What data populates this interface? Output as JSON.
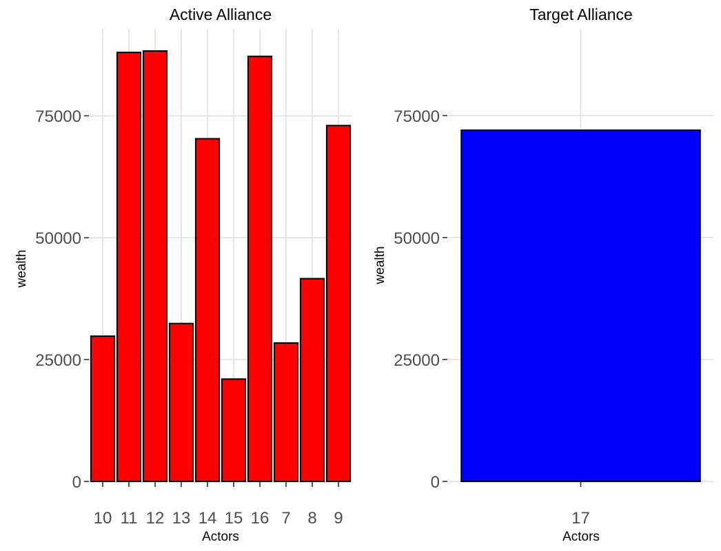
{
  "chart_data": [
    {
      "type": "bar",
      "title": "Active Alliance",
      "xlabel": "Actors",
      "ylabel": "wealth",
      "categories": [
        "10",
        "11",
        "12",
        "13",
        "14",
        "15",
        "16",
        "7",
        "8",
        "9"
      ],
      "values": [
        29800,
        88000,
        88300,
        32400,
        70300,
        21000,
        87200,
        28400,
        41600,
        73000
      ],
      "ylim": [
        0,
        88300
      ],
      "yticks": [
        0,
        25000,
        50000,
        75000
      ],
      "fill_color": "#ff0000",
      "grid": true,
      "legend": "none"
    },
    {
      "type": "bar",
      "title": "Target Alliance",
      "xlabel": "Actors",
      "ylabel": "wealth",
      "categories": [
        "17"
      ],
      "values": [
        72000
      ],
      "ylim": [
        0,
        72000
      ],
      "yticks": [
        0,
        25000,
        50000,
        75000
      ],
      "fill_color": "#0000ff",
      "grid": true,
      "legend": "none"
    }
  ]
}
